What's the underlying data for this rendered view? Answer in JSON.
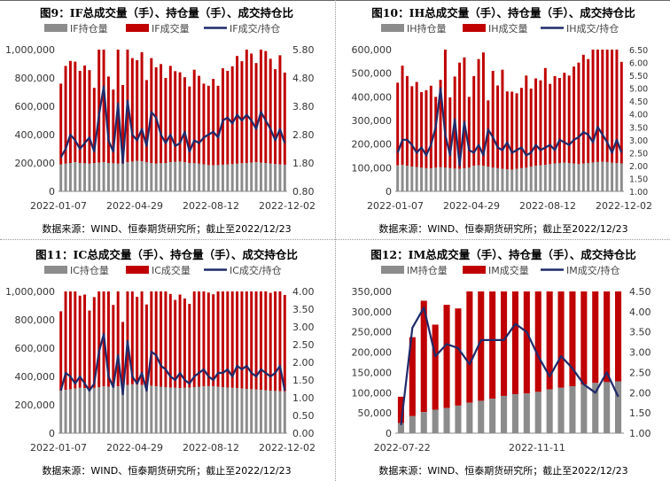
{
  "source_note": "数据来源：WIND、恒泰期货研究所；截止至2022/12/23",
  "colors": {
    "oi": "#8c8c8c",
    "vol": "#c00000",
    "ratio": "#1f2a6b"
  },
  "chart_data": [
    {
      "id": "if",
      "title": "图9：IF总成交量（手）、持仓量（手）、成交持仓比",
      "type": "bar+line",
      "legend": [
        "IF持仓量",
        "IF成交量",
        "IF成交/持仓"
      ],
      "x_ticks": [
        "2022-01-07",
        "2022-04-29",
        "2022-08-12",
        "2022-12-02"
      ],
      "y_left": {
        "min": 0,
        "max": 1000000,
        "ticks": [
          "0",
          "200,000",
          "400,000",
          "600,000",
          "800,000",
          "1,000,000"
        ]
      },
      "y_right": {
        "min": 0.8,
        "max": 5.8,
        "ticks": [
          "0.80",
          "1.80",
          "2.80",
          "3.80",
          "4.80",
          "5.80"
        ]
      },
      "oi": [
        190000,
        195000,
        200000,
        205000,
        200000,
        198000,
        195000,
        200000,
        202000,
        205000,
        200000,
        198000,
        195000,
        200000,
        205000,
        210000,
        215000,
        212000,
        205000,
        200000,
        195000,
        198000,
        200000,
        205000,
        208000,
        210000,
        205000,
        200000,
        198000,
        195000,
        190000,
        185000,
        183000,
        185000,
        188000,
        190000,
        192000,
        195000,
        198000,
        200000,
        202000,
        205000,
        203000,
        200000,
        195000,
        192000,
        190000,
        188000
      ],
      "vol": [
        570000,
        690000,
        720000,
        710000,
        650000,
        690000,
        660000,
        530000,
        960000,
        1010000,
        610000,
        520000,
        820000,
        550000,
        1010000,
        730000,
        710000,
        770000,
        580000,
        740000,
        680000,
        700000,
        600000,
        680000,
        640000,
        630000,
        600000,
        540000,
        660000,
        620000,
        570000,
        560000,
        610000,
        560000,
        680000,
        660000,
        690000,
        760000,
        720000,
        830000,
        770000,
        700000,
        900000,
        790000,
        740000,
        670000,
        770000,
        650000
      ],
      "ratio": [
        2.0,
        2.3,
        2.8,
        2.6,
        2.3,
        2.5,
        2.7,
        2.2,
        3.5,
        4.5,
        2.6,
        2.2,
        3.9,
        1.8,
        4.0,
        2.8,
        2.6,
        3.0,
        2.4,
        3.6,
        3.4,
        2.8,
        2.5,
        2.8,
        2.4,
        2.5,
        2.9,
        2.2,
        2.6,
        2.5,
        2.7,
        2.8,
        2.9,
        2.7,
        3.3,
        3.4,
        3.2,
        3.5,
        3.3,
        3.5,
        3.3,
        3.0,
        3.6,
        3.3,
        3.0,
        2.6,
        3.0,
        2.5
      ]
    },
    {
      "id": "ih",
      "title": "图10：IH总成交量（手）、持仓量（手）、成交持仓比",
      "type": "bar+line",
      "legend": [
        "IH持仓量",
        "IH成交量",
        "IH成交/持仓"
      ],
      "x_ticks": [
        "2022-01-07",
        "2022-04-29",
        "2022-08-12",
        "2022-12-02"
      ],
      "y_left": {
        "min": 0,
        "max": 600000,
        "ticks": [
          "0",
          "100,000",
          "200,000",
          "300,000",
          "400,000",
          "500,000",
          "600,000"
        ]
      },
      "y_right": {
        "min": 1.0,
        "max": 6.5,
        "ticks": [
          "1.00",
          "1.50",
          "2.00",
          "2.50",
          "3.00",
          "3.50",
          "4.00",
          "4.50",
          "5.00",
          "5.50",
          "6.00",
          "6.50"
        ]
      },
      "oi": [
        110000,
        112000,
        108000,
        105000,
        103000,
        100000,
        98000,
        97000,
        100000,
        102000,
        100000,
        98000,
        96000,
        95000,
        97000,
        100000,
        108000,
        110000,
        108000,
        105000,
        100000,
        98000,
        95000,
        93000,
        92000,
        95000,
        98000,
        100000,
        105000,
        108000,
        110000,
        112000,
        115000,
        118000,
        120000,
        122000,
        120000,
        118000,
        115000,
        118000,
        120000,
        122000,
        124000,
        125000,
        124000,
        122000,
        120000,
        118000
      ],
      "vol": [
        350000,
        420000,
        380000,
        340000,
        360000,
        320000,
        330000,
        350000,
        300000,
        370000,
        580000,
        300000,
        390000,
        450000,
        470000,
        300000,
        380000,
        450000,
        480000,
        280000,
        410000,
        350000,
        420000,
        330000,
        330000,
        320000,
        340000,
        390000,
        330000,
        370000,
        360000,
        410000,
        340000,
        370000,
        360000,
        380000,
        370000,
        410000,
        430000,
        460000,
        440000,
        510000,
        580000,
        560000,
        520000,
        510000,
        530000,
        430000
      ],
      "ratio": [
        2.5,
        3.0,
        3.0,
        2.8,
        2.5,
        2.7,
        2.4,
        2.8,
        3.5,
        5.0,
        3.2,
        2.4,
        3.8,
        2.0,
        3.7,
        2.6,
        2.5,
        2.8,
        2.4,
        3.4,
        3.1,
        2.7,
        2.6,
        2.9,
        2.5,
        2.6,
        2.7,
        2.4,
        2.5,
        2.8,
        2.6,
        2.7,
        2.8,
        2.6,
        3.0,
        2.9,
        2.8,
        3.0,
        3.1,
        3.3,
        3.2,
        2.9,
        3.5,
        3.2,
        2.9,
        2.5,
        3.0,
        2.5
      ]
    },
    {
      "id": "ic",
      "title": "图11：IC总成交量（手）、持仓量（手）、成交持仓比",
      "type": "bar+line",
      "legend": [
        "IC持仓量",
        "IC成交量",
        "IC成交/持仓"
      ],
      "x_ticks": [
        "2022-01-07",
        "2022-04-29",
        "2022-08-12",
        "2022-12-02"
      ],
      "y_left": {
        "min": 0,
        "max": 1000000,
        "ticks": [
          "0",
          "200,000",
          "400,000",
          "600,000",
          "800,000",
          "1,000,000"
        ]
      },
      "y_right": {
        "min": 0.0,
        "max": 4.0,
        "ticks": [
          "0.00",
          "0.50",
          "1.00",
          "1.50",
          "2.00",
          "2.50",
          "3.00",
          "3.50",
          "4.00"
        ]
      },
      "oi": [
        300000,
        305000,
        310000,
        315000,
        320000,
        318000,
        315000,
        320000,
        325000,
        330000,
        328000,
        325000,
        330000,
        335000,
        340000,
        345000,
        342000,
        340000,
        338000,
        335000,
        330000,
        328000,
        325000,
        322000,
        320000,
        318000,
        320000,
        322000,
        325000,
        328000,
        330000,
        332000,
        330000,
        328000,
        325000,
        322000,
        320000,
        318000,
        315000,
        312000,
        310000,
        308000,
        305000,
        302000,
        300000,
        298000,
        296000,
        295000
      ],
      "vol": [
        560000,
        740000,
        810000,
        840000,
        650000,
        660000,
        550000,
        640000,
        920000,
        1050000,
        700000,
        580000,
        870000,
        450000,
        1060000,
        740000,
        620000,
        830000,
        570000,
        790000,
        680000,
        770000,
        710000,
        660000,
        620000,
        660000,
        630000,
        590000,
        700000,
        740000,
        690000,
        660000,
        650000,
        680000,
        700000,
        760000,
        720000,
        810000,
        750000,
        830000,
        780000,
        710000,
        740000,
        730000,
        690000,
        780000,
        820000,
        680000
      ],
      "ratio": [
        1.2,
        1.7,
        1.6,
        1.4,
        1.6,
        1.4,
        1.2,
        1.4,
        2.3,
        2.8,
        1.6,
        1.3,
        2.2,
        1.1,
        2.6,
        1.6,
        1.4,
        1.7,
        1.2,
        2.3,
        2.2,
        1.9,
        1.8,
        1.6,
        1.5,
        1.7,
        1.5,
        1.4,
        1.6,
        1.7,
        1.8,
        1.6,
        1.5,
        1.7,
        1.7,
        1.8,
        1.6,
        1.9,
        1.8,
        1.9,
        1.7,
        1.6,
        1.8,
        1.7,
        1.6,
        1.7,
        1.9,
        1.2
      ]
    },
    {
      "id": "im",
      "title": "图12：IM总成交量（手）、持仓量（手）、成交持仓比",
      "type": "bar+line",
      "legend": [
        "IM持仓量",
        "IM成交量",
        "IM成交/持仓"
      ],
      "x_ticks": [
        "2022-07-22",
        "2022-11-11"
      ],
      "y_left": {
        "min": 0,
        "max": 350000,
        "ticks": [
          "0",
          "50,000",
          "100,000",
          "150,000",
          "200,000",
          "250,000",
          "300,000",
          "350,000"
        ]
      },
      "y_right": {
        "min": 1.0,
        "max": 4.5,
        "ticks": [
          "1.00",
          "1.50",
          "2.00",
          "2.50",
          "3.00",
          "3.50",
          "4.00",
          "4.50"
        ]
      },
      "oi": [
        25000,
        42000,
        52000,
        58000,
        62000,
        68000,
        75000,
        80000,
        85000,
        92000,
        96000,
        98000,
        102000,
        108000,
        112000,
        116000,
        120000,
        124000,
        126000,
        128000
      ],
      "vol": [
        65000,
        195000,
        275000,
        210000,
        255000,
        240000,
        295000,
        330000,
        350000,
        350000,
        350000,
        350000,
        350000,
        350000,
        350000,
        350000,
        350000,
        350000,
        350000,
        350000
      ],
      "ratio": [
        1.2,
        3.6,
        4.1,
        2.9,
        3.2,
        3.1,
        2.7,
        3.3,
        3.3,
        3.3,
        3.7,
        3.5,
        2.9,
        2.4,
        2.9,
        2.6,
        2.2,
        2.0,
        2.5,
        1.9
      ]
    }
  ]
}
